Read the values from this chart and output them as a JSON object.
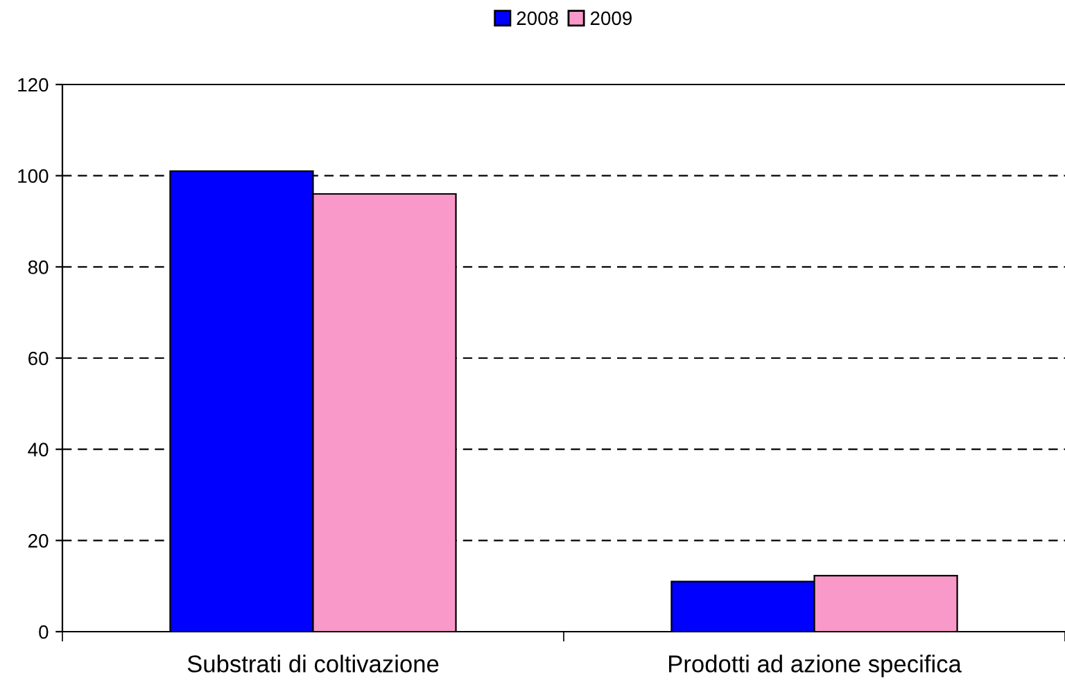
{
  "chart_data": {
    "type": "bar",
    "categories": [
      "Substrati di coltivazione",
      "Prodotti ad azione specifica"
    ],
    "series": [
      {
        "name": "2008",
        "color": "#0000ff",
        "values": [
          101,
          11
        ]
      },
      {
        "name": "2009",
        "color": "#f899c9",
        "values": [
          96,
          12.3
        ]
      }
    ],
    "ylim": [
      0,
      120
    ],
    "yticks": [
      0,
      20,
      40,
      60,
      80,
      100,
      120
    ],
    "grid": "y",
    "legend": "top"
  }
}
